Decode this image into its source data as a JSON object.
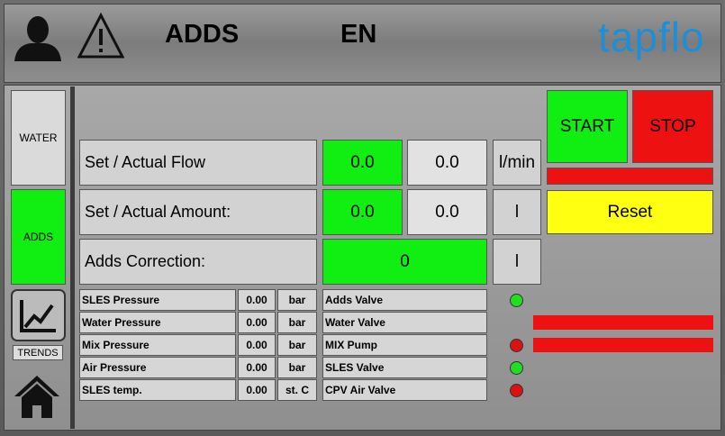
{
  "header": {
    "title": "ADDS",
    "language": "EN",
    "logo": "tapflo"
  },
  "sidebar": {
    "buttons": [
      "WATER",
      "ADDS"
    ],
    "trends": "TRENDS"
  },
  "controls": {
    "start": "START",
    "stop": "STOP",
    "reset": "Reset"
  },
  "rows": [
    {
      "label": "Set / Actual Flow",
      "set": "0.0",
      "actual": "0.0",
      "unit": "l/min"
    },
    {
      "label": "Set / Actual Amount:",
      "set": "0.0",
      "actual": "0.0",
      "unit": "l"
    },
    {
      "label": "Adds Correction:",
      "value": "0",
      "unit": "l"
    }
  ],
  "sensors": [
    {
      "label": "SLES Pressure",
      "value": "0.00",
      "unit": "bar"
    },
    {
      "label": "Water Pressure",
      "value": "0.00",
      "unit": "bar"
    },
    {
      "label": "Mix Pressure",
      "value": "0.00",
      "unit": "bar"
    },
    {
      "label": "Air Pressure",
      "value": "0.00",
      "unit": "bar"
    },
    {
      "label": "SLES temp.",
      "value": "0.00",
      "unit": "st. C"
    }
  ],
  "valves": [
    {
      "label": "Adds Valve",
      "status": "#22dd22"
    },
    {
      "label": "Water Valve",
      "status": null
    },
    {
      "label": "MIX Pump",
      "status": "#dd1111"
    },
    {
      "label": "SLES Valve",
      "status": "#22dd22"
    },
    {
      "label": "CPV Air Valve",
      "status": "#dd1111"
    }
  ]
}
